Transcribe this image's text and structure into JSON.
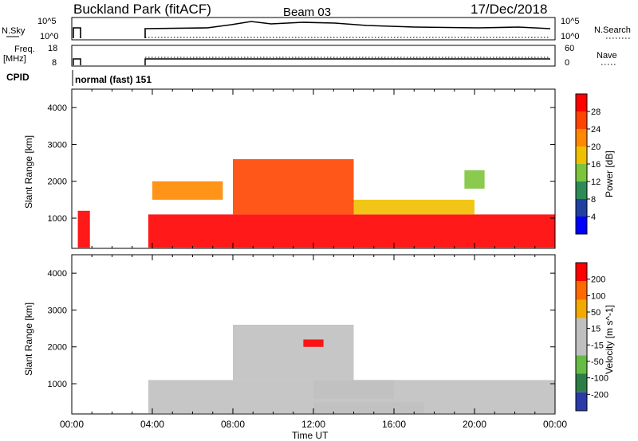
{
  "header": {
    "station": "Buckland Park (fitACF)",
    "beam": "Beam 03",
    "date": "17/Dec/2018"
  },
  "top_panels": {
    "nsky_label": "N.Sky",
    "nsky_ticks": [
      "10^5",
      "10^0"
    ],
    "nsearch_label": "N.Search",
    "nsearch_ticks": [
      "10^5",
      "10^0"
    ],
    "freq_label": "Freq.",
    "freq_unit": "[MHz]",
    "freq_ticks": [
      "18",
      "8"
    ],
    "nave_label": "Nave",
    "nave_ticks": [
      "60",
      "0"
    ],
    "cpid_label": "CPID",
    "cpid_value": "normal (fast) 151"
  },
  "colors": {
    "power_scale": [
      "#0000ff",
      "#2040a0",
      "#2e8b57",
      "#7cc43c",
      "#f0c000",
      "#ff8800",
      "#ff4400",
      "#ff0000"
    ],
    "velocity_scale": [
      "#2a3aa8",
      "#2e7d46",
      "#66bb44",
      "#c0c0c0",
      "#c0c0c0",
      "#f2a900",
      "#ff6a00",
      "#ff0000"
    ]
  },
  "chart_data": [
    {
      "type": "heatmap",
      "title": "Power",
      "xlabel": "",
      "ylabel": "Slant Range [km]",
      "x_ticks": [
        "00:00",
        "04:00",
        "08:00",
        "12:00",
        "16:00",
        "20:00",
        "00:00"
      ],
      "xlim_hours": [
        0,
        24
      ],
      "y_ticks": [
        1000,
        2000,
        3000,
        4000
      ],
      "ylim": [
        180,
        4500
      ],
      "colorbar_label": "Power [dB]",
      "colorbar_ticks": [
        "4",
        "8",
        "12",
        "16",
        "20",
        "24",
        "28"
      ],
      "colorbar_range": [
        0,
        32
      ],
      "regions": [
        {
          "t": [
            0.3,
            0.9
          ],
          "r": [
            200,
            1200
          ],
          "value": 28
        },
        {
          "t": [
            3.8,
            24
          ],
          "r": [
            200,
            1100
          ],
          "value": 28
        },
        {
          "t": [
            8.0,
            14.0
          ],
          "r": [
            1100,
            2600
          ],
          "value": 26
        },
        {
          "t": [
            14.0,
            20.0
          ],
          "r": [
            1100,
            1500
          ],
          "value": 18
        },
        {
          "t": [
            4.0,
            7.5
          ],
          "r": [
            1500,
            2000
          ],
          "value": 20
        },
        {
          "t": [
            19.5,
            20.5
          ],
          "r": [
            1800,
            2300
          ],
          "value": 14
        }
      ]
    },
    {
      "type": "heatmap",
      "title": "Velocity",
      "xlabel": "Time UT",
      "ylabel": "Slant Range [km]",
      "x_ticks": [
        "00:00",
        "04:00",
        "08:00",
        "12:00",
        "16:00",
        "20:00",
        "00:00"
      ],
      "xlim_hours": [
        0,
        24
      ],
      "y_ticks": [
        1000,
        2000,
        3000,
        4000
      ],
      "ylim": [
        180,
        4500
      ],
      "colorbar_label": "Velocity [m s^-1]",
      "colorbar_ticks": [
        "200",
        "100",
        "50",
        "15",
        "-15",
        "-50",
        "-100",
        "-200"
      ],
      "colorbar_range": [
        -250,
        250
      ],
      "regions": [
        {
          "t": [
            3.8,
            24
          ],
          "r": [
            200,
            1100
          ],
          "value": 0
        },
        {
          "t": [
            8.0,
            14.0
          ],
          "r": [
            1100,
            2600
          ],
          "value": 0
        },
        {
          "t": [
            12.0,
            16.0
          ],
          "r": [
            600,
            1100
          ],
          "value": 40
        },
        {
          "t": [
            12.0,
            17.5
          ],
          "r": [
            200,
            500
          ],
          "value": -40
        },
        {
          "t": [
            11.5,
            12.5
          ],
          "r": [
            2000,
            2200
          ],
          "value": 220
        }
      ]
    }
  ],
  "xaxis_label": "Time UT"
}
